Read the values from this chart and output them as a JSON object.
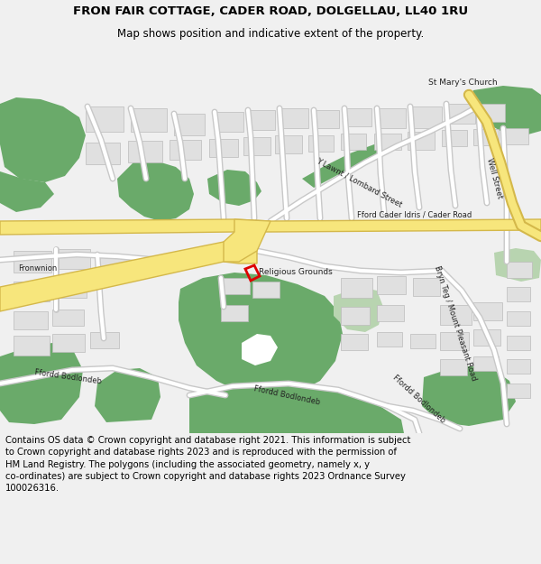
{
  "title_line1": "FRON FAIR COTTAGE, CADER ROAD, DOLGELLAU, LL40 1RU",
  "title_line2": "Map shows position and indicative extent of the property.",
  "footer": "Contains OS data © Crown copyright and database right 2021. This information is subject\nto Crown copyright and database rights 2023 and is reproduced with the permission of\nHM Land Registry. The polygons (including the associated geometry, namely x, y\nco-ordinates) are subject to Crown copyright and database rights 2023 Ordnance Survey\n100026316.",
  "bg_color": "#f0f0f0",
  "map_bg": "#f5f5f0",
  "road_main_color": "#f7e67c",
  "road_main_edge": "#d4b84a",
  "road_minor_color": "#ffffff",
  "road_minor_edge": "#c8c8c8",
  "green_dark": "#6aaa6a",
  "green_light": "#b8d4b0",
  "building_fill": "#e0e0e0",
  "building_edge": "#bbbbbb",
  "plot_color": "#dd0000",
  "title_fontsize": 9.5,
  "subtitle_fontsize": 8.5,
  "footer_fontsize": 7.2,
  "label_fontsize": 6.0,
  "label_color": "#222222"
}
